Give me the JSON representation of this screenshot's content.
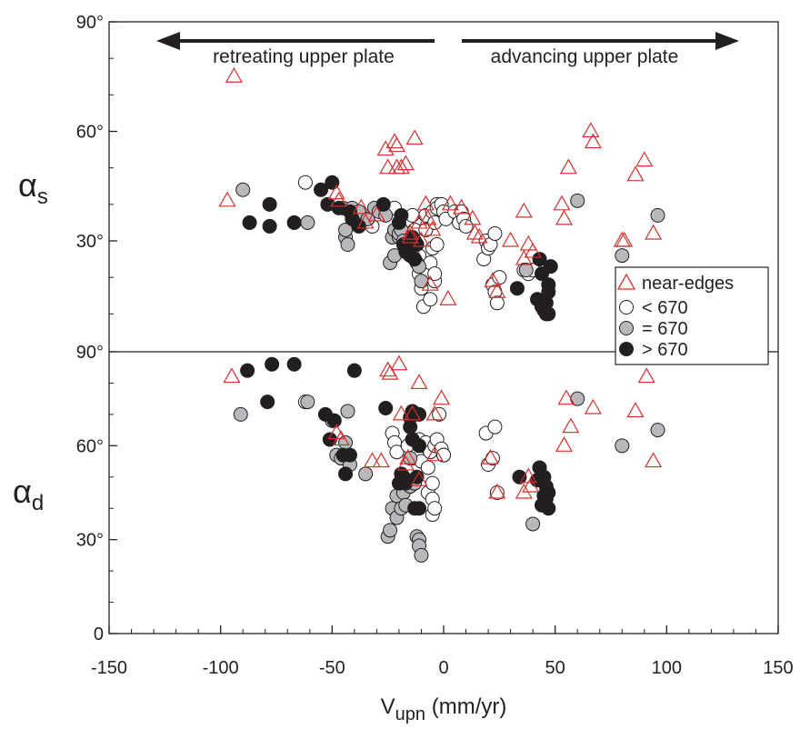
{
  "chart_data": {
    "type": "scatter",
    "x_axis": {
      "label_main": "V",
      "label_sub": "upn",
      "label_units": " (mm/yr)",
      "range": [
        -150,
        150
      ],
      "ticks": [
        -150,
        -100,
        -50,
        0,
        50,
        100,
        150
      ],
      "tick_labels": [
        "-150",
        "-100",
        "-50",
        "0",
        "50",
        "100",
        "150"
      ]
    },
    "panels": [
      {
        "id": "alpha_s",
        "ylabel_main": "α",
        "ylabel_sub": "s",
        "ylim": [
          0,
          90
        ],
        "ticks": [
          30,
          60,
          90
        ],
        "tick_labels": [
          "30°",
          "60°",
          "90°"
        ]
      },
      {
        "id": "alpha_d",
        "ylabel_main": "α",
        "ylabel_sub": "d",
        "ylim": [
          0,
          90
        ],
        "ticks": [
          0,
          30,
          60,
          90
        ],
        "tick_labels": [
          "0",
          "30°",
          "60°",
          "90°"
        ]
      }
    ],
    "annotations": {
      "left_arrow_text": "retreating upper plate",
      "right_arrow_text": "advancing upper plate"
    },
    "legend": {
      "placement": "right, lower part of top panel",
      "entries": [
        {
          "label": "near-edges",
          "marker": "triangle",
          "color": "#d6302b"
        },
        {
          "label": "< 670",
          "marker": "circle",
          "fill": "#ffffff"
        },
        {
          "label": "= 670",
          "marker": "circle",
          "fill": "#b7b8bb"
        },
        {
          "label": "> 670",
          "marker": "circle",
          "fill": "#231f20"
        }
      ]
    },
    "colors": {
      "near_edges": "#d6302b",
      "lt670": "#ffffff",
      "eq670": "#b7b8bb",
      "gt670": "#231f20",
      "axes": "#231f20"
    },
    "series": [
      {
        "name": "near-edges",
        "points_alpha_s": [
          [
            -94,
            75
          ],
          [
            -97,
            41
          ],
          [
            -48,
            43
          ],
          [
            -47,
            41
          ],
          [
            -37,
            39
          ],
          [
            -35,
            35
          ],
          [
            -30,
            37
          ],
          [
            -26,
            55
          ],
          [
            -25,
            50
          ],
          [
            -22,
            57
          ],
          [
            -21,
            50
          ],
          [
            -21,
            56
          ],
          [
            -19,
            50
          ],
          [
            -17,
            51
          ],
          [
            -15,
            32
          ],
          [
            -13,
            58
          ],
          [
            -11,
            35
          ],
          [
            -8,
            40
          ],
          [
            -7,
            36
          ],
          [
            -5,
            33
          ],
          [
            -6,
            18
          ],
          [
            -15,
            31
          ],
          [
            -10,
            30
          ],
          [
            2,
            14
          ],
          [
            3,
            40
          ],
          [
            8,
            39
          ],
          [
            13,
            36
          ],
          [
            14,
            32
          ],
          [
            16,
            31
          ],
          [
            22,
            19
          ],
          [
            24,
            16
          ],
          [
            30,
            30
          ],
          [
            36,
            25
          ],
          [
            36,
            38
          ],
          [
            38,
            29
          ],
          [
            40,
            27
          ],
          [
            53,
            40
          ],
          [
            54,
            36
          ],
          [
            56,
            50
          ],
          [
            66,
            60
          ],
          [
            67,
            57
          ],
          [
            80,
            30
          ],
          [
            81,
            30
          ],
          [
            86,
            48
          ],
          [
            90,
            52
          ],
          [
            94,
            32
          ]
        ],
        "points_alpha_d": [
          [
            -95,
            82
          ],
          [
            -48,
            64
          ],
          [
            -46,
            62
          ],
          [
            -32,
            55
          ],
          [
            -28,
            55
          ],
          [
            -25,
            84
          ],
          [
            -24,
            83
          ],
          [
            -20,
            86
          ],
          [
            -19,
            70
          ],
          [
            -17,
            54
          ],
          [
            -16,
            56
          ],
          [
            -14,
            70
          ],
          [
            -11,
            80
          ],
          [
            -4,
            70
          ],
          [
            -1,
            75
          ],
          [
            -11,
            49
          ],
          [
            -4,
            57
          ],
          [
            21,
            56
          ],
          [
            24,
            45
          ],
          [
            36,
            45
          ],
          [
            38,
            50
          ],
          [
            39,
            47
          ],
          [
            55,
            75
          ],
          [
            54,
            60
          ],
          [
            57,
            66
          ],
          [
            67,
            72
          ],
          [
            86,
            71
          ],
          [
            91,
            82
          ],
          [
            94,
            55
          ]
        ]
      },
      {
        "name": "< 670",
        "points_alpha_s": [
          [
            -62,
            46
          ],
          [
            -32,
            34
          ],
          [
            -22,
            39
          ],
          [
            -19,
            34
          ],
          [
            -17,
            35
          ],
          [
            -14,
            37
          ],
          [
            -13,
            33
          ],
          [
            -12,
            29
          ],
          [
            -11,
            26
          ],
          [
            -11,
            21
          ],
          [
            -10,
            17
          ],
          [
            -9,
            12
          ],
          [
            -8,
            33
          ],
          [
            -8,
            37
          ],
          [
            -7,
            21
          ],
          [
            -6,
            14
          ],
          [
            -6,
            24
          ],
          [
            -5,
            28
          ],
          [
            -5,
            38
          ],
          [
            -4,
            35
          ],
          [
            -4,
            19
          ],
          [
            -4,
            21
          ],
          [
            -3,
            29
          ],
          [
            -3,
            40
          ],
          [
            -3,
            39
          ],
          [
            -1,
            40
          ],
          [
            0,
            38
          ],
          [
            1,
            36
          ],
          [
            5,
            38
          ],
          [
            7,
            35
          ],
          [
            8,
            38
          ],
          [
            9,
            36
          ],
          [
            10,
            34
          ],
          [
            18,
            25
          ],
          [
            19,
            30
          ],
          [
            20,
            28
          ],
          [
            21,
            29
          ],
          [
            22,
            18
          ],
          [
            23,
            32
          ],
          [
            23,
            16
          ],
          [
            24,
            13
          ],
          [
            25,
            20
          ],
          [
            36,
            22
          ],
          [
            37,
            22
          ],
          [
            38,
            21
          ],
          [
            40,
            22
          ]
        ],
        "points_alpha_d": [
          [
            -62,
            74
          ],
          [
            -23,
            64
          ],
          [
            -22,
            61
          ],
          [
            -21,
            58
          ],
          [
            -16,
            60
          ],
          [
            -14,
            56
          ],
          [
            -12,
            57
          ],
          [
            -11,
            62
          ],
          [
            -10,
            55
          ],
          [
            -9,
            60
          ],
          [
            -8,
            61
          ],
          [
            -7,
            53
          ],
          [
            -7,
            45
          ],
          [
            -6,
            58
          ],
          [
            -5,
            48
          ],
          [
            -5,
            43
          ],
          [
            -5,
            38
          ],
          [
            -4,
            40
          ],
          [
            -4,
            60
          ],
          [
            -3,
            62
          ],
          [
            -2,
            70
          ],
          [
            -1,
            59
          ],
          [
            0,
            57
          ],
          [
            0,
            57
          ],
          [
            19,
            64
          ],
          [
            20,
            54
          ],
          [
            22,
            56
          ],
          [
            23,
            66
          ],
          [
            24,
            45
          ]
        ]
      },
      {
        "name": "= 670",
        "points_alpha_s": [
          [
            -90,
            44
          ],
          [
            -61,
            35
          ],
          [
            -45,
            39
          ],
          [
            -44,
            31
          ],
          [
            -44,
            33
          ],
          [
            -43,
            29
          ],
          [
            -41,
            39
          ],
          [
            -38,
            38
          ],
          [
            -34,
            36
          ],
          [
            -31,
            39
          ],
          [
            -29,
            38
          ],
          [
            -26,
            37
          ],
          [
            -24,
            24
          ],
          [
            -23,
            31
          ],
          [
            -22,
            26
          ],
          [
            -22,
            33
          ],
          [
            -20,
            31
          ],
          [
            -20,
            32
          ],
          [
            -19,
            33
          ],
          [
            -18,
            30
          ],
          [
            -16,
            28
          ],
          [
            -14,
            26
          ],
          [
            -12,
            24
          ],
          [
            -11,
            23
          ],
          [
            -10,
            19
          ],
          [
            37,
            22
          ],
          [
            60,
            41
          ],
          [
            80,
            26
          ],
          [
            96,
            37
          ]
        ],
        "points_alpha_d": [
          [
            -91,
            70
          ],
          [
            -61,
            74
          ],
          [
            -50,
            68
          ],
          [
            -48,
            57
          ],
          [
            -46,
            56
          ],
          [
            -44,
            61
          ],
          [
            -43,
            71
          ],
          [
            -42,
            54
          ],
          [
            -35,
            51
          ],
          [
            -25,
            31
          ],
          [
            -24,
            33
          ],
          [
            -23,
            40
          ],
          [
            -21,
            44
          ],
          [
            -21,
            37
          ],
          [
            -19,
            40
          ],
          [
            -18,
            45
          ],
          [
            -17,
            41
          ],
          [
            -15,
            47
          ],
          [
            -15,
            56
          ],
          [
            -13,
            48
          ],
          [
            -12,
            31
          ],
          [
            -11,
            30
          ],
          [
            -11,
            28
          ],
          [
            -10,
            25
          ],
          [
            40,
            35
          ],
          [
            60,
            75
          ],
          [
            80,
            60
          ],
          [
            96,
            65
          ]
        ]
      },
      {
        "name": "> 670",
        "points_alpha_s": [
          [
            -87,
            35
          ],
          [
            -78,
            34
          ],
          [
            -78,
            40
          ],
          [
            -67,
            35
          ],
          [
            -55,
            44
          ],
          [
            -52,
            40
          ],
          [
            -50,
            46
          ],
          [
            -47,
            39
          ],
          [
            -42,
            38
          ],
          [
            -41,
            36
          ],
          [
            -38,
            34
          ],
          [
            -27,
            40
          ],
          [
            -20,
            35
          ],
          [
            -19,
            37
          ],
          [
            -18,
            29
          ],
          [
            -17,
            27
          ],
          [
            -15,
            28
          ],
          [
            -15,
            26
          ],
          [
            -14,
            31
          ],
          [
            -13,
            30
          ],
          [
            -13,
            25
          ],
          [
            -12,
            29
          ],
          [
            33,
            17
          ],
          [
            42,
            14
          ],
          [
            43,
            25
          ],
          [
            44,
            12
          ],
          [
            44,
            21
          ],
          [
            45,
            11
          ],
          [
            46,
            13
          ],
          [
            46,
            10
          ],
          [
            47,
            18
          ],
          [
            47,
            16
          ],
          [
            47,
            10
          ],
          [
            48,
            23
          ]
        ],
        "points_alpha_d": [
          [
            -88,
            84
          ],
          [
            -79,
            74
          ],
          [
            -77,
            86
          ],
          [
            -67,
            86
          ],
          [
            -53,
            70
          ],
          [
            -51,
            62
          ],
          [
            -49,
            68
          ],
          [
            -45,
            57
          ],
          [
            -44,
            51
          ],
          [
            -42,
            57
          ],
          [
            -40,
            84
          ],
          [
            -26,
            72
          ],
          [
            -20,
            48
          ],
          [
            -19,
            51
          ],
          [
            -18,
            50
          ],
          [
            -17,
            48
          ],
          [
            -15,
            69
          ],
          [
            -15,
            66
          ],
          [
            -14,
            71
          ],
          [
            -14,
            62
          ],
          [
            -13,
            40
          ],
          [
            -12,
            50
          ],
          [
            -11,
            70
          ],
          [
            -11,
            60
          ],
          [
            -11,
            40
          ],
          [
            34,
            50
          ],
          [
            42,
            49
          ],
          [
            43,
            53
          ],
          [
            44,
            41
          ],
          [
            45,
            50
          ],
          [
            45,
            44
          ],
          [
            46,
            47
          ],
          [
            46,
            43
          ],
          [
            47,
            40
          ],
          [
            47,
            45
          ]
        ]
      }
    ]
  }
}
